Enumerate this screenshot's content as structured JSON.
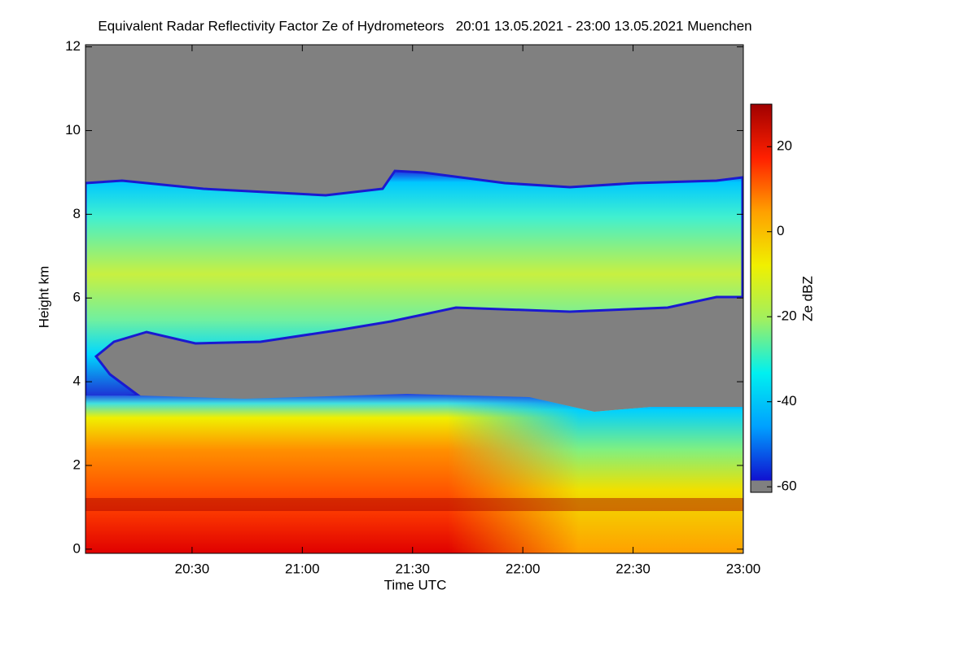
{
  "chart_data": {
    "type": "heatmap",
    "title": "Equivalent Radar Reflectivity Factor Ze of Hydrometeors   20:01 13.05.2021 - 23:00 13.05.2021 Muenchen",
    "x_label": "Time UTC",
    "y_label": "Height km",
    "xlim": [
      1201,
      1380
    ],
    "xticks": [
      {
        "value": 1230,
        "label": "20:30"
      },
      {
        "value": 1260,
        "label": "21:00"
      },
      {
        "value": 1290,
        "label": "21:30"
      },
      {
        "value": 1320,
        "label": "22:00"
      },
      {
        "value": 1350,
        "label": "22:30"
      },
      {
        "value": 1380,
        "label": "23:00"
      }
    ],
    "ylim": [
      -0.1,
      12.05
    ],
    "yticks": [
      0,
      2,
      4,
      6,
      8,
      10,
      12
    ],
    "colorbar": {
      "label": "Ze dBZ",
      "lim": [
        -61.3,
        30
      ],
      "ticks": [
        -60,
        -40,
        -20,
        0,
        20
      ],
      "colormap": [
        "#808080",
        "#1010d0",
        "#00a0ff",
        "#00f0f0",
        "#a0f060",
        "#f0f000",
        "#ffa000",
        "#ff2000",
        "#a00000"
      ]
    }
  }
}
